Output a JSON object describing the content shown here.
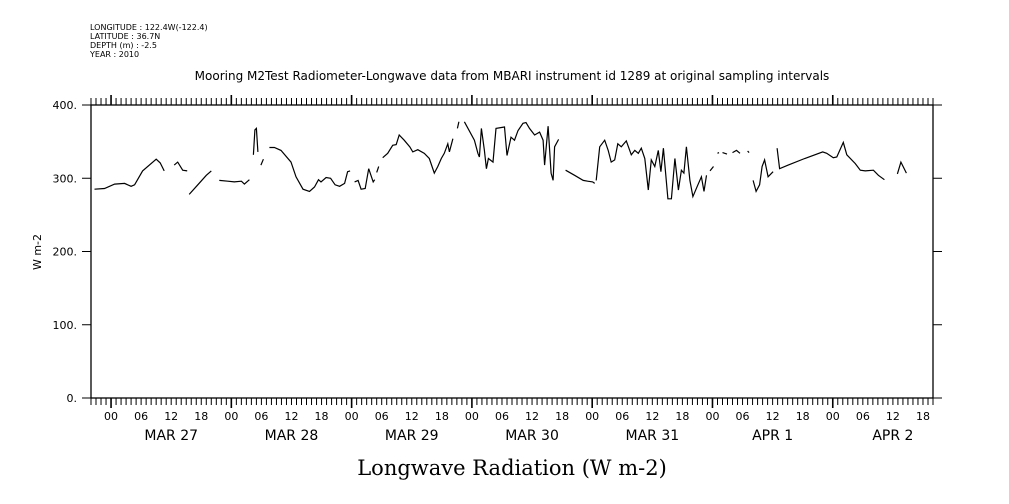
{
  "header": {
    "longitude": "LONGITUDE : 122.4W(-122.4)",
    "latitude": "LATITUDE : 36.7N",
    "depth": "DEPTH (m) : -2.5",
    "year": "YEAR : 2010"
  },
  "chart_data": {
    "type": "line",
    "title": "Mooring M2Test Radiometer-Longwave data from MBARI instrument id 1289 at original sampling intervals",
    "xlabel": "Longwave Radiation (W m-2)",
    "ylabel": "W m-2",
    "x_units": "hours since MAR 27 2010 00:00",
    "xlim": [
      -4,
      164
    ],
    "ylim": [
      0,
      400
    ],
    "yticks": [
      0,
      100,
      200,
      300,
      400
    ],
    "ytick_labels": [
      "0.",
      "100.",
      "200.",
      "300.",
      "400."
    ],
    "hour_labels": [
      "00",
      "06",
      "12",
      "18"
    ],
    "day_labels": [
      {
        "label": "MAR 27",
        "hour": 12
      },
      {
        "label": "MAR 28",
        "hour": 36
      },
      {
        "label": "MAR 29",
        "hour": 60
      },
      {
        "label": "MAR 30",
        "hour": 84
      },
      {
        "label": "MAR 31",
        "hour": 108
      },
      {
        "label": "APR  1",
        "hour": 132
      },
      {
        "label": "APR  2",
        "hour": 156
      }
    ],
    "segments": [
      [
        [
          -3.3,
          285
        ],
        [
          -1.3,
          286
        ],
        [
          0.7,
          292
        ],
        [
          2.7,
          293
        ],
        [
          4,
          289
        ],
        [
          4.7,
          291
        ],
        [
          6.3,
          310
        ],
        [
          9,
          326
        ],
        [
          9.8,
          321
        ],
        [
          10.6,
          310
        ]
      ],
      [
        [
          12.6,
          318
        ],
        [
          13.3,
          322
        ],
        [
          14.3,
          311
        ],
        [
          15.2,
          310
        ]
      ],
      [
        [
          15.6,
          278
        ],
        [
          17.3,
          291
        ],
        [
          19,
          304
        ],
        [
          20,
          310
        ]
      ],
      [
        [
          21.6,
          297
        ],
        [
          23.3,
          296
        ],
        [
          24.6,
          295
        ],
        [
          26,
          296
        ],
        [
          26.6,
          292
        ],
        [
          27.6,
          298
        ]
      ],
      [
        [
          28.4,
          332
        ],
        [
          28.7,
          366
        ],
        [
          29,
          368
        ],
        [
          29.3,
          336
        ]
      ],
      [
        [
          29.9,
          318
        ],
        [
          30.4,
          326
        ]
      ],
      [
        [
          31.6,
          342
        ],
        [
          32.6,
          342
        ],
        [
          33.9,
          338
        ],
        [
          35.9,
          322
        ],
        [
          36.9,
          302
        ],
        [
          38.3,
          285
        ],
        [
          39.6,
          282
        ],
        [
          40.6,
          288
        ],
        [
          41.4,
          298
        ],
        [
          41.9,
          295
        ],
        [
          42.9,
          301
        ],
        [
          43.8,
          300
        ],
        [
          44.7,
          291
        ],
        [
          45.6,
          289
        ],
        [
          46.6,
          293
        ],
        [
          47.2,
          309
        ],
        [
          47.7,
          310
        ]
      ],
      [
        [
          48.6,
          295
        ],
        [
          49.3,
          297
        ],
        [
          49.9,
          285
        ],
        [
          50.7,
          286
        ],
        [
          51.4,
          313
        ],
        [
          52.3,
          295
        ],
        [
          52.6,
          298
        ]
      ],
      [
        [
          53,
          308
        ],
        [
          53.4,
          316
        ]
      ],
      [
        [
          54.2,
          328
        ],
        [
          55.2,
          334
        ],
        [
          56.2,
          345
        ],
        [
          56.9,
          346
        ],
        [
          57.5,
          359
        ],
        [
          58.5,
          352
        ],
        [
          59.6,
          343
        ],
        [
          60.2,
          336
        ],
        [
          61.2,
          339
        ],
        [
          62.5,
          334
        ],
        [
          63.5,
          327
        ],
        [
          64.5,
          307
        ],
        [
          65.2,
          316
        ],
        [
          65.9,
          327
        ],
        [
          66.5,
          334
        ],
        [
          67.2,
          347
        ],
        [
          67.5,
          336
        ],
        [
          68.2,
          354
        ]
      ],
      [
        [
          69.1,
          368
        ],
        [
          69.4,
          377
        ]
      ],
      [
        [
          70.5,
          377
        ],
        [
          72.5,
          352
        ],
        [
          73.2,
          334
        ],
        [
          73.5,
          329
        ],
        [
          73.9,
          368
        ],
        [
          74.5,
          338
        ],
        [
          74.9,
          313
        ],
        [
          75.3,
          327
        ],
        [
          76.2,
          322
        ],
        [
          76.8,
          368
        ],
        [
          78.5,
          370
        ],
        [
          79,
          331
        ],
        [
          79.8,
          356
        ],
        [
          80.5,
          352
        ],
        [
          81.2,
          365
        ],
        [
          82.2,
          375
        ],
        [
          82.8,
          376
        ],
        [
          83.5,
          368
        ],
        [
          84.5,
          359
        ],
        [
          85.5,
          363
        ],
        [
          86.2,
          352
        ],
        [
          86.5,
          318
        ],
        [
          87.2,
          371
        ],
        [
          87.8,
          307
        ],
        [
          88.2,
          297
        ],
        [
          88.5,
          343
        ],
        [
          89.3,
          353
        ]
      ],
      [
        [
          90.7,
          311
        ],
        [
          92.5,
          304
        ],
        [
          94.2,
          297
        ],
        [
          95.1,
          296
        ],
        [
          96.1,
          295
        ],
        [
          96.5,
          293
        ]
      ],
      [
        [
          96.8,
          297
        ],
        [
          97.5,
          343
        ],
        [
          98.5,
          352
        ],
        [
          99.2,
          338
        ],
        [
          99.8,
          322
        ],
        [
          100.5,
          325
        ],
        [
          101.1,
          347
        ],
        [
          101.8,
          343
        ],
        [
          102.8,
          351
        ],
        [
          103.8,
          332
        ],
        [
          104.5,
          338
        ],
        [
          105.2,
          334
        ],
        [
          105.8,
          341
        ],
        [
          106.5,
          327
        ],
        [
          107.2,
          284
        ],
        [
          107.8,
          325
        ],
        [
          108.5,
          316
        ],
        [
          109.2,
          338
        ],
        [
          109.7,
          309
        ],
        [
          110.2,
          341
        ],
        [
          111.1,
          272
        ],
        [
          111.8,
          272
        ],
        [
          112.5,
          327
        ],
        [
          113.2,
          284
        ],
        [
          113.8,
          311
        ],
        [
          114.3,
          307
        ],
        [
          114.8,
          343
        ],
        [
          115.5,
          297
        ],
        [
          116.1,
          275
        ],
        [
          117.1,
          291
        ],
        [
          117.8,
          302
        ],
        [
          118.3,
          282
        ],
        [
          118.8,
          304
        ]
      ],
      [
        [
          119.5,
          310
        ],
        [
          120.2,
          316
        ]
      ],
      [
        [
          121,
          334
        ],
        [
          121.3,
          335
        ]
      ],
      [
        [
          122,
          335
        ],
        [
          122.9,
          333
        ]
      ],
      [
        [
          124,
          335
        ],
        [
          124.8,
          338
        ],
        [
          125.5,
          334
        ]
      ],
      [
        [
          127,
          337
        ],
        [
          127.3,
          335
        ]
      ],
      [
        [
          128.1,
          297
        ],
        [
          128.7,
          282
        ],
        [
          129.4,
          291
        ],
        [
          129.9,
          316
        ],
        [
          130.4,
          325
        ],
        [
          131.1,
          302
        ],
        [
          132.1,
          309
        ]
      ],
      [
        [
          132.9,
          341
        ],
        [
          133.4,
          313
        ],
        [
          135.1,
          318
        ],
        [
          138.4,
          327
        ],
        [
          142,
          336
        ],
        [
          142.8,
          334
        ],
        [
          144.1,
          328
        ],
        [
          144.8,
          329
        ],
        [
          146.1,
          349
        ],
        [
          146.8,
          332
        ],
        [
          148.5,
          320
        ],
        [
          149.5,
          311
        ],
        [
          150.5,
          310
        ],
        [
          152.1,
          311
        ],
        [
          153.1,
          304
        ],
        [
          154.3,
          298
        ]
      ],
      [
        [
          156.9,
          306
        ],
        [
          157.6,
          322
        ],
        [
          158.7,
          307
        ]
      ]
    ]
  }
}
